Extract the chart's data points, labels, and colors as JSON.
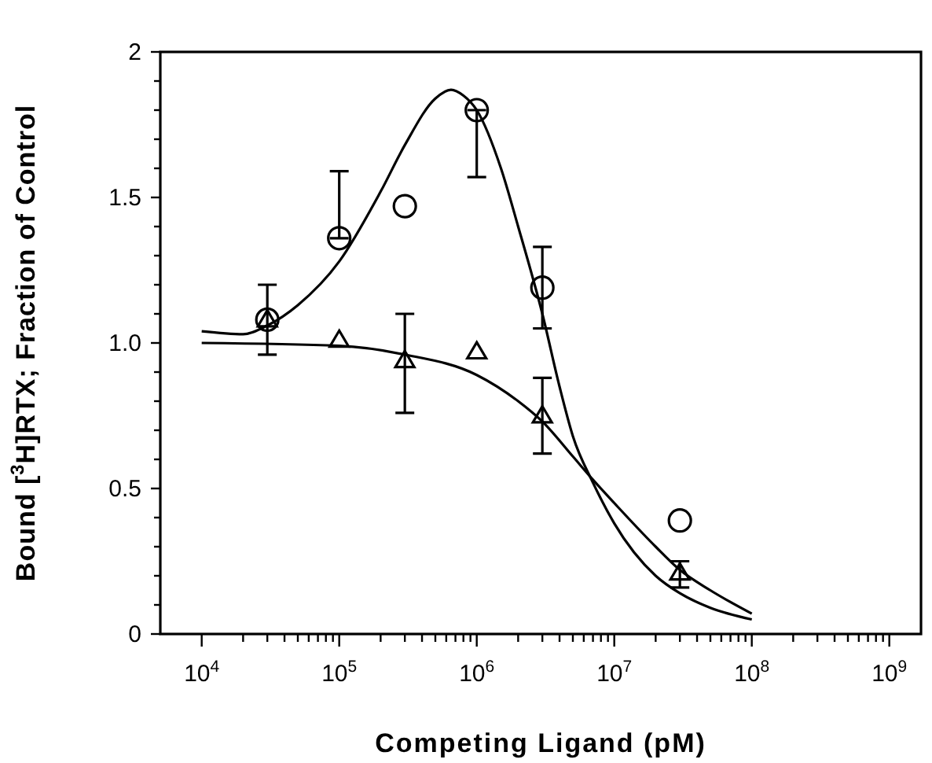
{
  "chart_data": {
    "type": "scatter",
    "xlabel": "Competing Ligand (pM)",
    "ylabel": "Bound [$^{3}$H]RTX; Fraction of Control",
    "log": "x",
    "xlim": [
      5000,
      1700000000
    ],
    "xticks": [
      {
        "value": 10000,
        "label": "10$^{4}$"
      },
      {
        "value": 20000,
        "label": null
      },
      {
        "value": 30000,
        "label": null
      },
      {
        "value": 40000,
        "label": null
      },
      {
        "value": 50000,
        "label": null
      },
      {
        "value": 60000,
        "label": null
      },
      {
        "value": 70000,
        "label": null
      },
      {
        "value": 80000,
        "label": null
      },
      {
        "value": 90000,
        "label": null
      },
      {
        "value": 100000,
        "label": "10$^{5}$"
      },
      {
        "value": 200000,
        "label": null
      },
      {
        "value": 300000,
        "label": null
      },
      {
        "value": 400000,
        "label": null
      },
      {
        "value": 500000,
        "label": null
      },
      {
        "value": 600000,
        "label": null
      },
      {
        "value": 700000,
        "label": null
      },
      {
        "value": 800000,
        "label": null
      },
      {
        "value": 900000,
        "label": null
      },
      {
        "value": 1000000,
        "label": "10$^{6}$"
      },
      {
        "value": 2000000,
        "label": null
      },
      {
        "value": 3000000,
        "label": null
      },
      {
        "value": 4000000,
        "label": null
      },
      {
        "value": 5000000,
        "label": null
      },
      {
        "value": 6000000,
        "label": null
      },
      {
        "value": 7000000,
        "label": null
      },
      {
        "value": 8000000,
        "label": null
      },
      {
        "value": 9000000,
        "label": null
      },
      {
        "value": 10000000,
        "label": "10$^{7}$"
      },
      {
        "value": 20000000,
        "label": null
      },
      {
        "value": 30000000,
        "label": null
      },
      {
        "value": 40000000,
        "label": null
      },
      {
        "value": 50000000,
        "label": null
      },
      {
        "value": 60000000,
        "label": null
      },
      {
        "value": 70000000,
        "label": null
      },
      {
        "value": 80000000,
        "label": null
      },
      {
        "value": 90000000,
        "label": null
      },
      {
        "value": 100000000,
        "label": "10$^{8}$"
      },
      {
        "value": 200000000,
        "label": null
      },
      {
        "value": 300000000,
        "label": null
      },
      {
        "value": 400000000,
        "label": null
      },
      {
        "value": 500000000,
        "label": null
      },
      {
        "value": 600000000,
        "label": null
      },
      {
        "value": 700000000,
        "label": null
      },
      {
        "value": 800000000,
        "label": null
      },
      {
        "value": 900000000,
        "label": null
      },
      {
        "value": 1000000000,
        "label": "10$^{9}$"
      }
    ],
    "ylim": [
      0,
      2
    ],
    "yticks": [
      0,
      {
        "value": 0.1,
        "label": null
      },
      {
        "value": 0.2,
        "label": null
      },
      {
        "value": 0.3,
        "label": null
      },
      {
        "value": 0.4,
        "label": null
      },
      0.5,
      {
        "value": 0.6,
        "label": null
      },
      {
        "value": 0.7,
        "label": null
      },
      {
        "value": 0.8,
        "label": null
      },
      {
        "value": 0.9,
        "label": null
      },
      {
        "value": 1,
        "label": "1.0"
      },
      {
        "value": 1.1,
        "label": null
      },
      {
        "value": 1.2,
        "label": null
      },
      {
        "value": 1.3,
        "label": null
      },
      {
        "value": 1.4,
        "label": null
      },
      1.5,
      {
        "value": 1.6,
        "label": null
      },
      {
        "value": 1.7,
        "label": null
      },
      {
        "value": 1.8,
        "label": null
      },
      {
        "value": 1.9,
        "label": null
      },
      2
    ],
    "grid": false,
    "series": [
      {
        "type": "line",
        "color": "#000000",
        "marker": "none",
        "line_style": "solid",
        "x": [
          10000,
          20000,
          30000,
          50000,
          100000,
          200000,
          300000,
          500000,
          650000,
          800000,
          1000000,
          1500000,
          2000000,
          3000000,
          4000000,
          5000000,
          7000000,
          10000000,
          20000000,
          30000000,
          50000000,
          100000000
        ],
        "values": [
          1.04,
          1.03,
          1.06,
          1.13,
          1.28,
          1.52,
          1.68,
          1.84,
          1.87,
          1.85,
          1.8,
          1.6,
          1.4,
          1.1,
          0.85,
          0.68,
          0.52,
          0.38,
          0.2,
          0.14,
          0.09,
          0.05
        ]
      },
      {
        "type": "line",
        "color": "#000000",
        "marker": "none",
        "line_style": "solid",
        "x": [
          10000,
          100000,
          300000,
          1000000,
          2000000,
          3000000,
          5000000,
          7000000,
          10000000,
          20000000,
          30000000,
          50000000,
          100000000
        ],
        "values": [
          1.0,
          0.99,
          0.96,
          0.89,
          0.8,
          0.73,
          0.61,
          0.53,
          0.45,
          0.3,
          0.22,
          0.15,
          0.07
        ]
      },
      {
        "color": "#000000",
        "marker": "circle",
        "x": [
          30000,
          100000,
          300000,
          1000000,
          3000000,
          30000000
        ],
        "values": [
          1.08,
          1.36,
          1.47,
          1.8,
          1.19,
          0.39
        ],
        "errors": [
          [
            0.96,
            1.2
          ],
          [
            1.36,
            1.59
          ],
          null,
          [
            1.57,
            1.8
          ],
          [
            1.05,
            1.33
          ],
          null
        ]
      },
      {
        "color": "#000000",
        "marker": "triangle",
        "x": [
          30000,
          100000,
          300000,
          1000000,
          3000000,
          30000000
        ],
        "values": [
          1.08,
          1.01,
          0.94,
          0.97,
          0.75,
          0.21
        ],
        "errors": [
          null,
          null,
          [
            0.76,
            1.1
          ],
          null,
          [
            0.62,
            0.88
          ],
          [
            0.16,
            0.25
          ]
        ]
      }
    ]
  }
}
